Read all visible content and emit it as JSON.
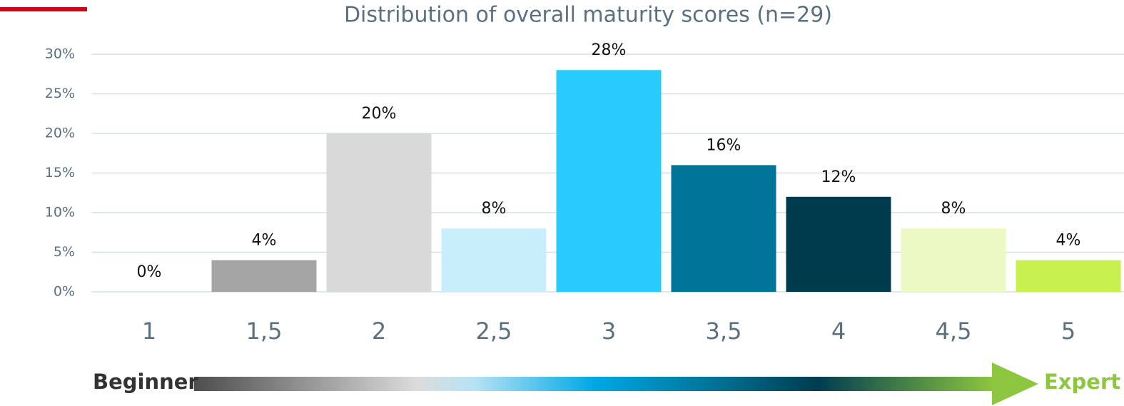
{
  "chart_data": {
    "type": "bar",
    "title": "Distribution of overall maturity scores (n=29)",
    "categories": [
      "1",
      "1,5",
      "2",
      "2,5",
      "3",
      "3,5",
      "4",
      "4,5",
      "5"
    ],
    "values": [
      0,
      4,
      20,
      8,
      28,
      16,
      12,
      8,
      4
    ],
    "value_labels": [
      "0%",
      "4%",
      "20%",
      "8%",
      "28%",
      "16%",
      "12%",
      "8%",
      "4%"
    ],
    "colors": [
      "#a5a5a5",
      "#a5a5a5",
      "#d9d9d9",
      "#c8eefc",
      "#29cbfc",
      "#00759a",
      "#003a4d",
      "#ebf9c4",
      "#c8f04f"
    ],
    "ylim": [
      0,
      30
    ],
    "yticks": [
      {
        "value": 0,
        "label": "0%"
      },
      {
        "value": 5,
        "label": "5%"
      },
      {
        "value": 10,
        "label": "10%"
      },
      {
        "value": 15,
        "label": "15%"
      },
      {
        "value": 20,
        "label": "20%"
      },
      {
        "value": 25,
        "label": "25%"
      },
      {
        "value": 30,
        "label": "30%"
      }
    ],
    "grid": true,
    "scale_start_label": "Beginner",
    "scale_end_label": "Expert"
  }
}
